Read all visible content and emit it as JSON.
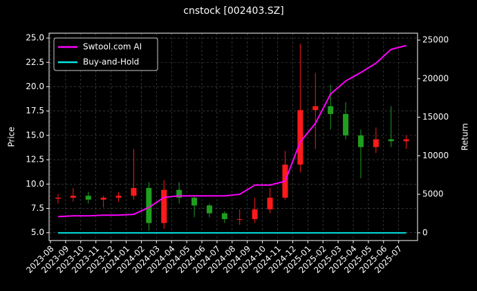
{
  "chart_data": {
    "type": "candlestick",
    "title": "cnstock [002403.SZ]",
    "ylabel": "Price",
    "y2label": "Return",
    "categories": [
      "2023-08",
      "2023-09",
      "2023-10",
      "2023-11",
      "2023-12",
      "2024-01",
      "2024-02",
      "2024-03",
      "2024-04",
      "2024-05",
      "2024-06",
      "2024-07",
      "2024-08",
      "2024-09",
      "2024-10",
      "2024-11",
      "2024-12",
      "2025-01",
      "2025-02",
      "2025-03",
      "2025-04",
      "2025-05",
      "2025-06",
      "2025-07"
    ],
    "open": [
      8.5,
      8.6,
      8.8,
      8.4,
      8.6,
      8.8,
      9.6,
      6.0,
      9.4,
      8.6,
      7.8,
      7.0,
      6.4,
      6.4,
      7.4,
      8.6,
      12.0,
      17.6,
      18.0,
      17.2,
      15.0,
      13.8,
      14.6,
      14.4
    ],
    "high": [
      9.0,
      9.6,
      9.2,
      8.8,
      9.2,
      13.6,
      10.2,
      10.4,
      10.2,
      8.8,
      8.0,
      7.2,
      7.4,
      8.6,
      9.6,
      13.4,
      24.4,
      21.4,
      20.2,
      18.4,
      15.6,
      15.8,
      18.0,
      15.0
    ],
    "low": [
      8.0,
      8.2,
      8.0,
      7.6,
      8.2,
      8.4,
      5.2,
      5.4,
      8.0,
      6.6,
      6.6,
      6.0,
      5.8,
      6.0,
      7.0,
      8.4,
      11.2,
      13.6,
      15.6,
      14.6,
      10.6,
      13.2,
      13.8,
      13.6
    ],
    "close": [
      8.6,
      8.8,
      8.4,
      8.6,
      8.8,
      9.6,
      6.0,
      9.4,
      8.6,
      7.8,
      7.0,
      6.4,
      6.4,
      7.4,
      8.6,
      12.0,
      17.6,
      18.0,
      17.2,
      15.0,
      13.8,
      14.6,
      14.4,
      14.6
    ],
    "up_color": "#ff1a1a",
    "down_color": "#1f9e1f",
    "series": [
      {
        "name": "Swtool.com AI",
        "color": "#ff00ff",
        "axis": "y2",
        "values": [
          2100,
          2200,
          2200,
          2300,
          2300,
          2400,
          3300,
          4600,
          4800,
          4800,
          4800,
          4800,
          5000,
          6200,
          6200,
          6700,
          11800,
          14200,
          18000,
          19700,
          20800,
          22000,
          23800,
          24300
        ]
      },
      {
        "name": "Buy-and-Hold",
        "color": "#00e5e5",
        "axis": "y2",
        "values": [
          0,
          0,
          0,
          0,
          0,
          0,
          0,
          0,
          0,
          0,
          0,
          0,
          0,
          0,
          0,
          0,
          0,
          0,
          0,
          0,
          0,
          0,
          0,
          0
        ]
      }
    ],
    "ylim": [
      4.2,
      25.5
    ],
    "yticks": [
      {
        "value": 5,
        "label": "5.0"
      },
      {
        "value": 7.5,
        "label": "7.5"
      },
      {
        "value": 10,
        "label": "10.0"
      },
      {
        "value": 12.5,
        "label": "12.5"
      },
      {
        "value": 15,
        "label": "15.0"
      },
      {
        "value": 17.5,
        "label": "17.5"
      },
      {
        "value": 20,
        "label": "20.0"
      },
      {
        "value": 22.5,
        "label": "22.5"
      },
      {
        "value": 25,
        "label": "25.0"
      }
    ],
    "y2lim": [
      -1000,
      25900
    ],
    "y2ticks": [
      0,
      5000,
      10000,
      15000,
      20000,
      25000
    ],
    "grid": true,
    "legend": "upper left"
  }
}
